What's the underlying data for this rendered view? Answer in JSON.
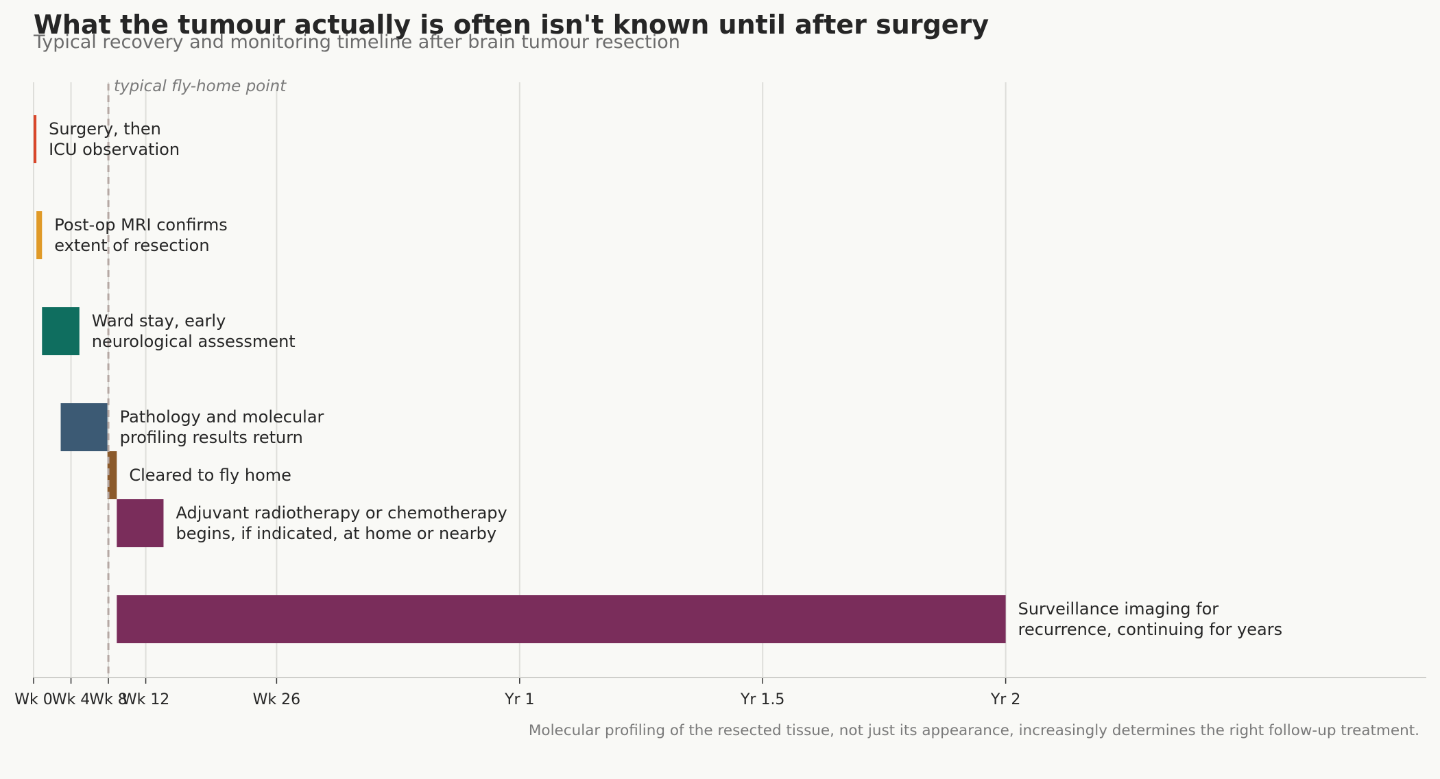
{
  "title": "What the tumour actually is often isn't known until after surgery",
  "subtitle": "Typical recovery and monitoring timeline after brain tumour resection",
  "footnote": "Molecular profiling of the resected tissue, not just its appearance, increasingly determines the right follow-up treatment.",
  "chart_data": {
    "type": "gantt",
    "x_unit": "weeks after surgery",
    "xlim": [
      0,
      149
    ],
    "grid": true,
    "x_ticks": [
      {
        "value": 0,
        "label": "Wk 0"
      },
      {
        "value": 4,
        "label": "Wk 4"
      },
      {
        "value": 8,
        "label": "Wk 8"
      },
      {
        "value": 12,
        "label": "Wk 12"
      },
      {
        "value": 26,
        "label": "Wk 26"
      },
      {
        "value": 52,
        "label": "Yr 1"
      },
      {
        "value": 78,
        "label": "Yr 1.5"
      },
      {
        "value": 104,
        "label": "Yr 2"
      }
    ],
    "reference_line": {
      "value": 8,
      "label": "typical fly-home point"
    },
    "tasks": [
      {
        "label": [
          "Surgery, then",
          "ICU observation"
        ],
        "start": 0,
        "end": 0.3,
        "row": 0,
        "color": "#d9472b"
      },
      {
        "label": [
          "Post-op MRI confirms",
          "extent of resection"
        ],
        "start": 0.3,
        "end": 0.9,
        "row": 1,
        "color": "#e09a27"
      },
      {
        "label": [
          "Ward stay, early",
          "neurological assessment"
        ],
        "start": 0.9,
        "end": 4.9,
        "row": 2,
        "color": "#0f6e5f"
      },
      {
        "label": [
          "Pathology and molecular",
          "profiling results return"
        ],
        "start": 2.9,
        "end": 7.9,
        "row": 3,
        "color": "#3c5a74"
      },
      {
        "label": [
          "Cleared to fly home"
        ],
        "start": 7.9,
        "end": 8.9,
        "row": 3.5,
        "color": "#8b5a2b"
      },
      {
        "label": [
          "Adjuvant radiotherapy or chemotherapy",
          "begins, if indicated, at home or nearby"
        ],
        "start": 8.9,
        "end": 13.9,
        "row": 4,
        "color": "#7a2d5b"
      },
      {
        "label": [
          "Surveillance imaging for",
          "recurrence, continuing for years"
        ],
        "start": 8.9,
        "end": 104,
        "row": 5,
        "color": "#7a2d5b"
      }
    ]
  }
}
